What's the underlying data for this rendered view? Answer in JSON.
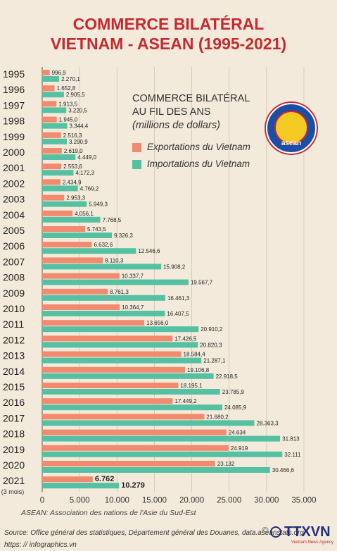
{
  "title_line1": "COMMERCE BILATÉRAL",
  "title_line2": "VIETNAM - ASEAN (1995-2021)",
  "legend": {
    "title1": "COMMERCE BILATÉRAL",
    "title2": "AU FIL DES ANS",
    "subtitle": "(millions de dollars)",
    "export_label": "Exportations du Vietnam",
    "import_label": "Importations du Vietnam"
  },
  "logo_text": "asean",
  "footnote": "ASEAN: Association des nations de l'Asie du Sud-Est",
  "source": "Source: Office général des statistiques, Département général des Douanes, data.aseanstats.org",
  "site": "https: // infographics.vn",
  "credit": "TTXVN",
  "credit_sub": "Vietnam News Agency",
  "colors": {
    "export": "#f28a6e",
    "import": "#55c1a2",
    "title": "#c62a2f"
  },
  "chart_data": {
    "type": "bar",
    "orientation": "horizontal",
    "categories": [
      "1995",
      "1996",
      "1997",
      "1998",
      "1999",
      "2000",
      "2001",
      "2002",
      "2003",
      "2004",
      "2005",
      "2006",
      "2007",
      "2008",
      "2009",
      "2010",
      "2011",
      "2012",
      "2013",
      "2014",
      "2015",
      "2016",
      "2017",
      "2018",
      "2019",
      "2020",
      "2021"
    ],
    "category_note_2021": "(3 mois)",
    "series": [
      {
        "name": "Exportations du Vietnam",
        "values": [
          996.9,
          1652.8,
          1913.5,
          1945.0,
          2516.3,
          2619.0,
          2553.6,
          2434.9,
          2953.3,
          4056.1,
          5743.5,
          6632.6,
          8110.3,
          10337.7,
          8761.3,
          10364.7,
          13656.0,
          17426.5,
          18584.4,
          19106.8,
          18195.1,
          17449.2,
          21680.2,
          24634,
          24919,
          23132,
          6762
        ],
        "labels": [
          "996,9",
          "1.652,8",
          "1.913,5",
          "1.945,0",
          "2.516,3",
          "2.619,0",
          "2.553,6",
          "2.434,9",
          "2.953,3",
          "4.056,1",
          "5.743,5",
          "6.632,6",
          "8.110,3",
          "10.337,7",
          "8.761,3",
          "10.364,7",
          "13.656,0",
          "17.426,5",
          "18.584,4",
          "19.106,8",
          "18.195,1",
          "17.449,2",
          "21.680,2",
          "24.634",
          "24.919",
          "23.132",
          "6.762"
        ]
      },
      {
        "name": "Importations du Vietnam",
        "values": [
          2270.1,
          2905.5,
          3220.5,
          3344.4,
          3290.9,
          4449.0,
          4172.3,
          4769.2,
          5949.3,
          7768.5,
          9326.3,
          12546.6,
          15908.2,
          19567.7,
          16461.3,
          16407.5,
          20910.2,
          20820.3,
          21287.1,
          22918.5,
          23785.9,
          24085.9,
          28363.3,
          31813,
          32111,
          30466.6,
          10279
        ],
        "labels": [
          "2.270,1",
          "2.905,5",
          "3.220,5",
          "3.344,4",
          "3.290,9",
          "4.449,0",
          "4.172,3",
          "4.769,2",
          "5.949,3",
          "7.768,5",
          "9.326,3",
          "12.546,6",
          "15.908,2",
          "19.567,7",
          "16.461,3",
          "16.407,5",
          "20.910,2",
          "20.820,3",
          "21.287,1",
          "22.918,5",
          "23.785,9",
          "24.085,9",
          "28.363,3",
          "31.813",
          "32.111",
          "30.466,6",
          "10.279"
        ]
      }
    ],
    "xlim": [
      0,
      35000
    ],
    "xticks": [
      0,
      5000,
      10000,
      15000,
      20000,
      25000,
      30000,
      35000
    ],
    "xtick_labels": [
      "0",
      "5.000",
      "10.000",
      "15.000",
      "20.000",
      "25.000",
      "30.000",
      "35.000"
    ],
    "grid": true
  }
}
